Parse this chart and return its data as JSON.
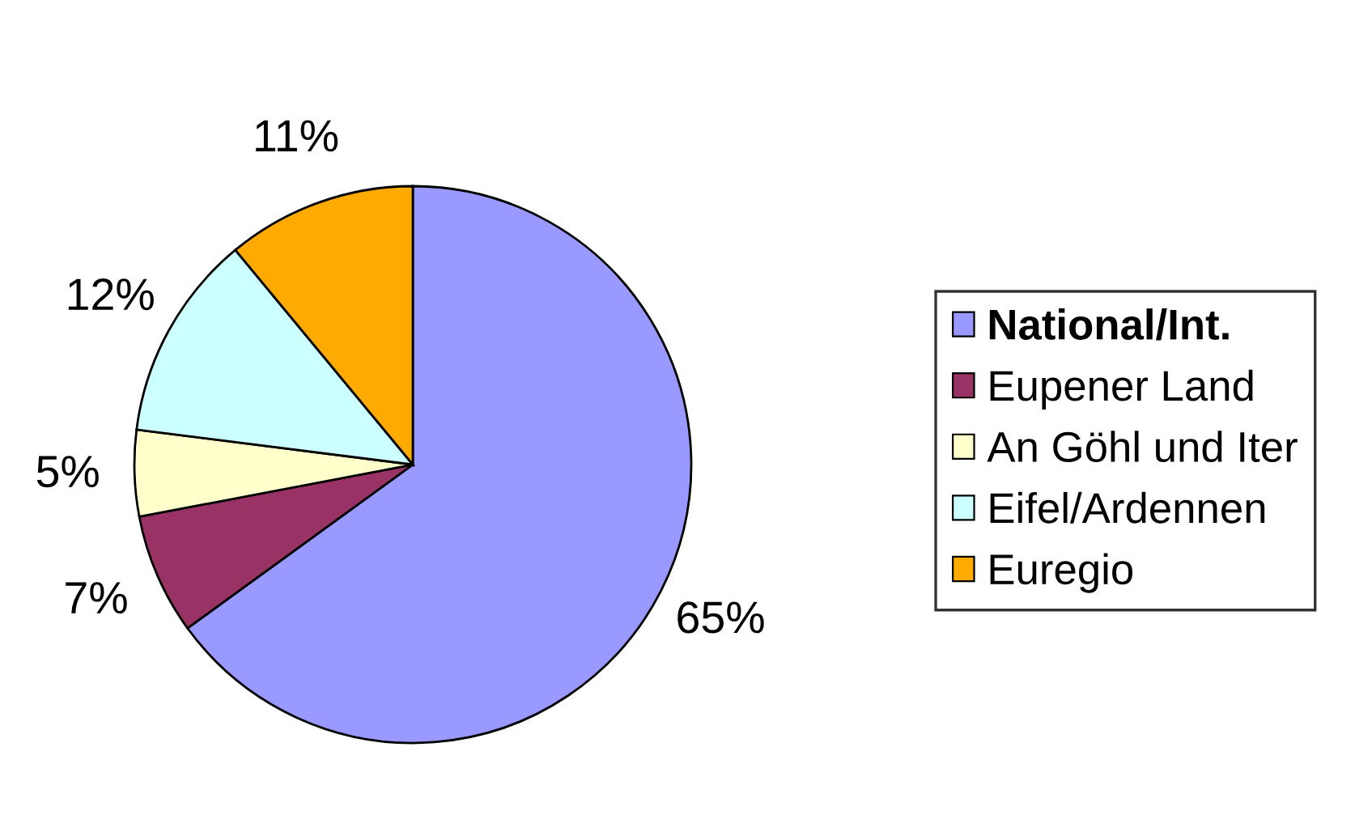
{
  "chart_data": {
    "type": "pie",
    "categories": [
      "National/Int.",
      "Eupener Land",
      "An Göhl und Iter",
      "Eifel/Ardennen",
      "Euregio"
    ],
    "values": [
      65,
      7,
      5,
      12,
      11
    ],
    "colors": [
      "#9999ff",
      "#993366",
      "#ffffcc",
      "#ccffff",
      "#ffaa00"
    ],
    "value_labels": [
      "65%",
      "7%",
      "5%",
      "12%",
      "11%"
    ],
    "legend": "right"
  }
}
